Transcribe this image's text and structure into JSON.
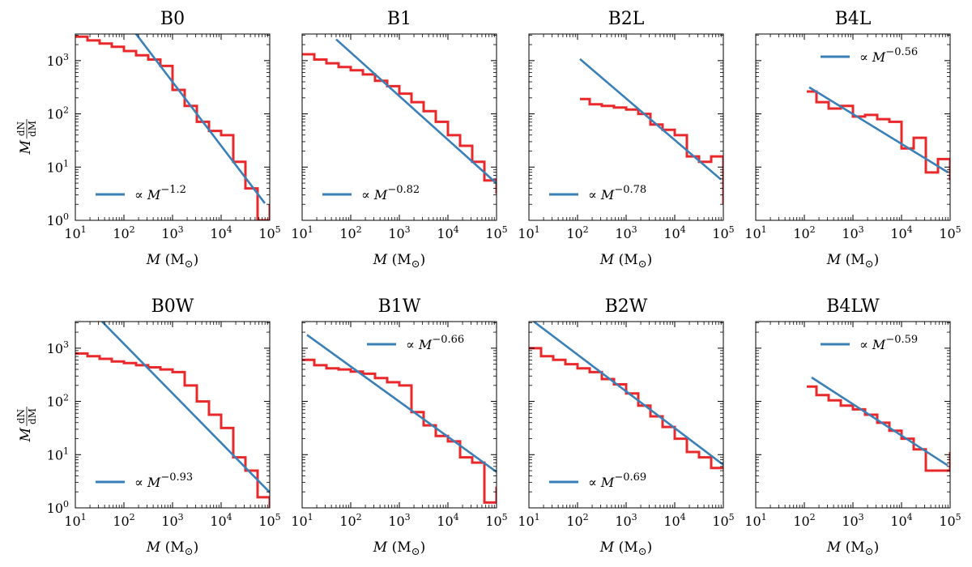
{
  "figure": {
    "x_label_var": "M",
    "x_label_unit": "(M",
    "x_label_sun": "⊙",
    "x_label_close": ")",
    "y_label_var": "M",
    "y_label_num": "dN",
    "y_label_den": "dM",
    "legend_prefix": "∝",
    "legend_var": "M",
    "series_colors": {
      "histogram": "#e8282a",
      "fit": "#3a80b8"
    }
  },
  "chart_data": [
    {
      "title": "B0",
      "type": "line",
      "xscale": "log",
      "yscale": "log",
      "xlim_exp": [
        1,
        5
      ],
      "ylim_exp": [
        0,
        3.5
      ],
      "x_tick_base": "10",
      "x_tick_exps": [
        "1",
        "2",
        "3",
        "4",
        "5"
      ],
      "y_tick_base": "10",
      "y_tick_exps": [
        "0",
        "1",
        "2",
        "3"
      ],
      "legend": {
        "exponent": "−1.2",
        "slope": -1.2,
        "position": "lower-left"
      },
      "fit": {
        "logx_range": [
          2.25,
          4.9
        ],
        "logy_at_start": 3.5
      },
      "histogram": {
        "log_edges": [
          1.0,
          1.25,
          1.5,
          1.75,
          2.0,
          2.25,
          2.5,
          2.75,
          3.0,
          3.25,
          3.5,
          3.75,
          4.0,
          4.25,
          4.5,
          4.75,
          5.0
        ],
        "log_values": [
          3.45,
          3.38,
          3.32,
          3.26,
          3.18,
          3.1,
          3.02,
          2.9,
          2.45,
          2.15,
          1.85,
          1.68,
          1.6,
          1.1,
          0.6,
          0.0,
          0.3
        ]
      }
    },
    {
      "title": "B1",
      "type": "line",
      "xscale": "log",
      "yscale": "log",
      "xlim_exp": [
        1,
        5
      ],
      "ylim_exp": [
        0,
        3.5
      ],
      "x_tick_base": "10",
      "x_tick_exps": [
        "1",
        "2",
        "3",
        "4",
        "5"
      ],
      "y_tick_base": "10",
      "y_tick_exps": [
        "0",
        "1",
        "2",
        "3"
      ],
      "legend": {
        "exponent": "−0.82",
        "slope": -0.82,
        "position": "lower-left"
      },
      "fit": {
        "logx_range": [
          1.7,
          5.0
        ],
        "logy_at_start": 3.4
      },
      "histogram": {
        "log_edges": [
          1.0,
          1.25,
          1.5,
          1.75,
          2.0,
          2.25,
          2.5,
          2.75,
          3.0,
          3.25,
          3.5,
          3.75,
          4.0,
          4.25,
          4.5,
          4.75,
          5.0
        ],
        "log_values": [
          3.12,
          3.02,
          2.95,
          2.88,
          2.82,
          2.74,
          2.62,
          2.52,
          2.38,
          2.22,
          2.05,
          1.85,
          1.6,
          1.4,
          1.1,
          0.75,
          0.5
        ]
      }
    },
    {
      "title": "B2L",
      "type": "line",
      "xscale": "log",
      "yscale": "log",
      "xlim_exp": [
        1,
        5
      ],
      "ylim_exp": [
        0,
        3.5
      ],
      "x_tick_base": "10",
      "x_tick_exps": [
        "1",
        "2",
        "3",
        "4",
        "5"
      ],
      "y_tick_base": "10",
      "y_tick_exps": [
        "0",
        "1",
        "2",
        "3"
      ],
      "legend": {
        "exponent": "−0.78",
        "slope": -0.78,
        "position": "lower-left"
      },
      "fit": {
        "logx_range": [
          2.05,
          4.95
        ],
        "logy_at_start": 3.03
      },
      "histogram": {
        "log_edges": [
          2.05,
          2.25,
          2.5,
          2.75,
          3.0,
          3.25,
          3.5,
          3.75,
          4.0,
          4.25,
          4.5,
          4.75,
          5.0
        ],
        "log_values": [
          2.28,
          2.18,
          2.15,
          2.12,
          2.08,
          2.0,
          1.8,
          1.7,
          1.6,
          1.2,
          1.1,
          1.2,
          0.3
        ]
      }
    },
    {
      "title": "B4L",
      "type": "line",
      "xscale": "log",
      "yscale": "log",
      "xlim_exp": [
        1,
        5
      ],
      "ylim_exp": [
        0,
        3.5
      ],
      "x_tick_base": "10",
      "x_tick_exps": [
        "1",
        "2",
        "3",
        "4",
        "5"
      ],
      "y_tick_base": "10",
      "y_tick_exps": [
        "0",
        "1",
        "2",
        "3"
      ],
      "legend": {
        "exponent": "−0.56",
        "slope": -0.56,
        "position": "top-right"
      },
      "fit": {
        "logx_range": [
          2.1,
          4.95
        ],
        "logy_at_start": 2.5
      },
      "histogram": {
        "log_edges": [
          2.05,
          2.25,
          2.5,
          2.75,
          3.0,
          3.25,
          3.5,
          3.75,
          4.0,
          4.25,
          4.5,
          4.75,
          5.0
        ],
        "log_values": [
          2.42,
          2.22,
          2.1,
          2.15,
          1.95,
          1.98,
          1.9,
          1.85,
          1.35,
          1.55,
          0.9,
          1.15,
          0.75
        ]
      }
    },
    {
      "title": "B0W",
      "type": "line",
      "xscale": "log",
      "yscale": "log",
      "xlim_exp": [
        1,
        5
      ],
      "ylim_exp": [
        0,
        3.5
      ],
      "x_tick_base": "10",
      "x_tick_exps": [
        "1",
        "2",
        "3",
        "4",
        "5"
      ],
      "y_tick_base": "10",
      "y_tick_exps": [
        "0",
        "1",
        "2",
        "3"
      ],
      "legend": {
        "exponent": "−0.93",
        "slope": -0.93,
        "position": "lower-left"
      },
      "fit": {
        "logx_range": [
          1.55,
          5.0
        ],
        "logy_at_start": 3.5
      },
      "histogram": {
        "log_edges": [
          1.0,
          1.25,
          1.5,
          1.75,
          2.0,
          2.25,
          2.5,
          2.75,
          3.0,
          3.25,
          3.5,
          3.75,
          4.0,
          4.25,
          4.5,
          4.75,
          5.0
        ],
        "log_values": [
          2.9,
          2.85,
          2.8,
          2.75,
          2.72,
          2.68,
          2.64,
          2.6,
          2.55,
          2.3,
          2.0,
          1.75,
          1.5,
          0.95,
          0.7,
          0.2,
          0.0
        ]
      }
    },
    {
      "title": "B1W",
      "type": "line",
      "xscale": "log",
      "yscale": "log",
      "xlim_exp": [
        1,
        5
      ],
      "ylim_exp": [
        0,
        3.5
      ],
      "x_tick_base": "10",
      "x_tick_exps": [
        "1",
        "2",
        "3",
        "4",
        "5"
      ],
      "y_tick_base": "10",
      "y_tick_exps": [
        "0",
        "1",
        "2",
        "3"
      ],
      "legend": {
        "exponent": "−0.66",
        "slope": -0.66,
        "position": "top-right"
      },
      "fit": {
        "logx_range": [
          1.1,
          5.0
        ],
        "logy_at_start": 3.25
      },
      "histogram": {
        "log_edges": [
          1.0,
          1.25,
          1.5,
          1.75,
          2.0,
          2.25,
          2.5,
          2.75,
          3.0,
          3.25,
          3.5,
          3.75,
          4.0,
          4.25,
          4.5,
          4.75,
          5.0
        ],
        "log_values": [
          2.78,
          2.68,
          2.62,
          2.6,
          2.56,
          2.52,
          2.44,
          2.36,
          2.3,
          1.8,
          1.55,
          1.35,
          1.25,
          0.95,
          0.85,
          0.1,
          0.4
        ]
      }
    },
    {
      "title": "B2W",
      "type": "line",
      "xscale": "log",
      "yscale": "log",
      "xlim_exp": [
        1,
        5
      ],
      "ylim_exp": [
        0,
        3.5
      ],
      "x_tick_base": "10",
      "x_tick_exps": [
        "1",
        "2",
        "3",
        "4",
        "5"
      ],
      "y_tick_base": "10",
      "y_tick_exps": [
        "0",
        "1",
        "2",
        "3"
      ],
      "legend": {
        "exponent": "−0.69",
        "slope": -0.69,
        "position": "lower-left"
      },
      "fit": {
        "logx_range": [
          1.1,
          5.0
        ],
        "logy_at_start": 3.5
      },
      "histogram": {
        "log_edges": [
          1.0,
          1.25,
          1.5,
          1.75,
          2.0,
          2.25,
          2.5,
          2.75,
          3.0,
          3.25,
          3.5,
          3.75,
          4.0,
          4.25,
          4.5,
          4.75,
          5.0
        ],
        "log_values": [
          3.0,
          2.85,
          2.78,
          2.7,
          2.62,
          2.55,
          2.42,
          2.32,
          2.15,
          1.92,
          1.72,
          1.52,
          1.3,
          1.05,
          0.95,
          0.75,
          0.75
        ]
      }
    },
    {
      "title": "B4LW",
      "type": "line",
      "xscale": "log",
      "yscale": "log",
      "xlim_exp": [
        1,
        5
      ],
      "ylim_exp": [
        0,
        3.5
      ],
      "x_tick_base": "10",
      "x_tick_exps": [
        "1",
        "2",
        "3",
        "4",
        "5"
      ],
      "y_tick_base": "10",
      "y_tick_exps": [
        "0",
        "1",
        "2",
        "3"
      ],
      "legend": {
        "exponent": "−0.59",
        "slope": -0.59,
        "position": "top-right"
      },
      "fit": {
        "logx_range": [
          2.15,
          4.95
        ],
        "logy_at_start": 2.45
      },
      "histogram": {
        "log_edges": [
          2.05,
          2.25,
          2.5,
          2.75,
          3.0,
          3.25,
          3.5,
          3.75,
          4.0,
          4.25,
          4.5,
          4.75,
          5.0
        ],
        "log_values": [
          2.28,
          2.12,
          2.02,
          1.92,
          1.85,
          1.75,
          1.6,
          1.45,
          1.3,
          1.1,
          0.7,
          0.7,
          1.05
        ]
      }
    }
  ]
}
